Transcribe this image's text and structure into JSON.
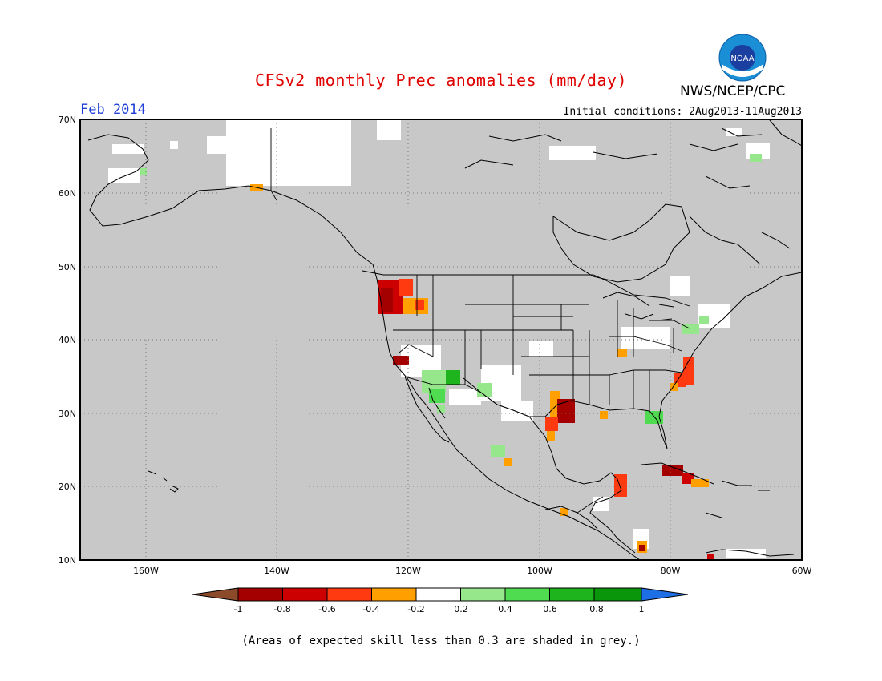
{
  "header": {
    "title": "CFSv2 monthly Prec anomalies (mm/day)",
    "agency": "NWS/NCEP/CPC",
    "month": "Feb 2014",
    "initial_conditions": "Initial conditions: 2Aug2013-11Aug2013",
    "logo_text": "NOAA"
  },
  "map": {
    "lat_labels": [
      "70N",
      "60N",
      "50N",
      "40N",
      "30N",
      "20N",
      "10N"
    ],
    "lon_labels": [
      "160W",
      "140W",
      "120W",
      "100W",
      "80W",
      "60W"
    ],
    "colors": {
      "skill_mask": "#c8c8c8",
      "ocean": "#c8c8c8",
      "coast": "#000000"
    }
  },
  "colorbar": {
    "labels": [
      "-1",
      "-0.8",
      "-0.6",
      "-0.4",
      "-0.2",
      "0.2",
      "0.4",
      "0.6",
      "0.8",
      "1"
    ],
    "colors": [
      "#8b4a2a",
      "#a40000",
      "#cc0000",
      "#ff3a10",
      "#ff9f00",
      "#ffffff",
      "#96e68c",
      "#50dc50",
      "#1eb41e",
      "#0a960a",
      "#1e6ee6"
    ]
  },
  "footer": {
    "note": "(Areas of expected skill less than 0.3 are shaded in grey.)"
  }
}
